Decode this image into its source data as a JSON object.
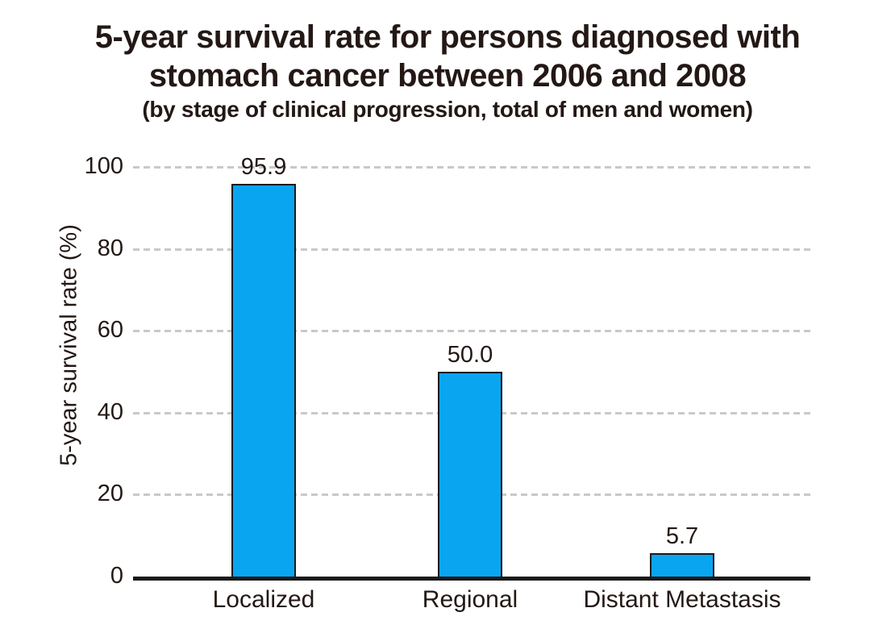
{
  "chart_data": {
    "type": "bar",
    "title_line1": "5-year survival rate for persons diagnosed with",
    "title_line2": "stomach cancer between 2006 and 2008",
    "subtitle": "(by stage of clinical progression, total of men and women)",
    "ylabel": "5-year survival rate (%)",
    "xlabel": "",
    "categories": [
      "Localized",
      "Regional",
      "Distant Metastasis"
    ],
    "values": [
      95.9,
      50.0,
      5.7
    ],
    "value_labels": [
      "95.9",
      "50.0",
      "5.7"
    ],
    "yticks": [
      0,
      20,
      40,
      60,
      80,
      100
    ],
    "ylim": [
      0,
      100
    ],
    "grid": "horizontal-dashed",
    "legend": "none",
    "colors": {
      "bar_fill": "#0aa5f0",
      "bar_border": "#1a1a1a",
      "grid_line": "#c9c9c9",
      "axis_line": "#1a1a1a",
      "text": "#231815",
      "background": "#ffffff"
    }
  }
}
